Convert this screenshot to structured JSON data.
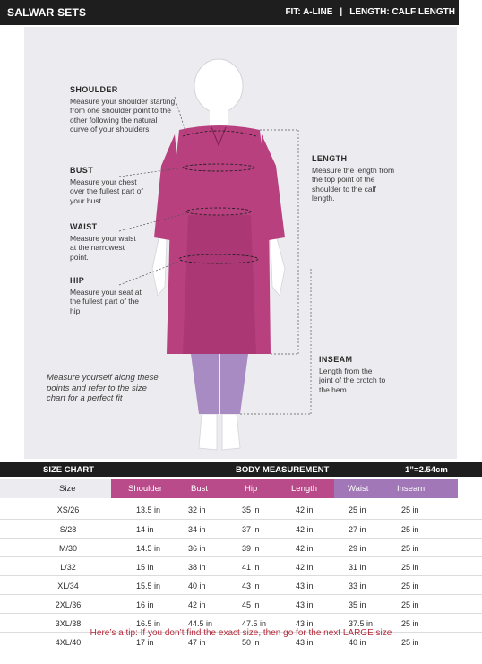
{
  "header": {
    "title": "SALWAR SETS",
    "fit": "FIT: A-LINE",
    "separator": "|",
    "length": "LENGTH: CALF LENGTH"
  },
  "guide": {
    "shoulder": {
      "label": "SHOULDER",
      "text": "Measure your shoulder starting from one shoulder point to the other following the natural curve of your shoulders"
    },
    "bust": {
      "label": "BUST",
      "text": "Measure your chest over the fullest part of your bust."
    },
    "waist": {
      "label": "WAIST",
      "text": "Measure your waist at the narrowest point."
    },
    "hip": {
      "label": "HIP",
      "text": "Measure your seat at the fullest part of the hip"
    },
    "length": {
      "label": "LENGTH",
      "text": "Measure the length from the top point of the shoulder to the calf length."
    },
    "inseam": {
      "label": "INSEAM",
      "text": "Length from the joint of the crotch to the hem"
    },
    "tip": "Measure yourself along these points and refer to the size chart for a perfect fit"
  },
  "chart": {
    "title": "SIZE CHART",
    "section": "BODY MEASUREMENT",
    "conversion": "1”=2.54cm",
    "columns": [
      "Size",
      "Shoulder",
      "Bust",
      "Hip",
      "Length",
      "Waist",
      "Inseam"
    ],
    "rows": [
      [
        "XS/26",
        "13.5 in",
        "32 in",
        "35 in",
        "42 in",
        "25 in",
        "25 in"
      ],
      [
        "S/28",
        "14 in",
        "34 in",
        "37 in",
        "42 in",
        "27 in",
        "25 in"
      ],
      [
        "M/30",
        "14.5 in",
        "36 in",
        "39 in",
        "42 in",
        "29 in",
        "25 in"
      ],
      [
        "L/32",
        "15 in",
        "38 in",
        "41 in",
        "42 in",
        "31 in",
        "25 in"
      ],
      [
        "XL/34",
        "15.5 in",
        "40 in",
        "43 in",
        "43 in",
        "33 in",
        "25 in"
      ],
      [
        "2XL/36",
        "16 in",
        "42 in",
        "45 in",
        "43 in",
        "35 in",
        "25 in"
      ],
      [
        "3XL/38",
        "16.5 in",
        "44.5 in",
        "47.5 in",
        "43 in",
        "37.5 in",
        "25 in"
      ],
      [
        "4XL/40",
        "17 in",
        "47 in",
        "50 in",
        "43 in",
        "40 in",
        "25 in"
      ]
    ]
  },
  "footer": {
    "tip": "Here’s a tip: If you don’t find the exact size, then go for the next LARGE size"
  },
  "colors": {
    "kurta": "#b8407f",
    "pants": "#a98bc4",
    "header_magenta": "#b94b8a",
    "header_purple": "#a277b7",
    "tip_red": "#b32a3a"
  }
}
